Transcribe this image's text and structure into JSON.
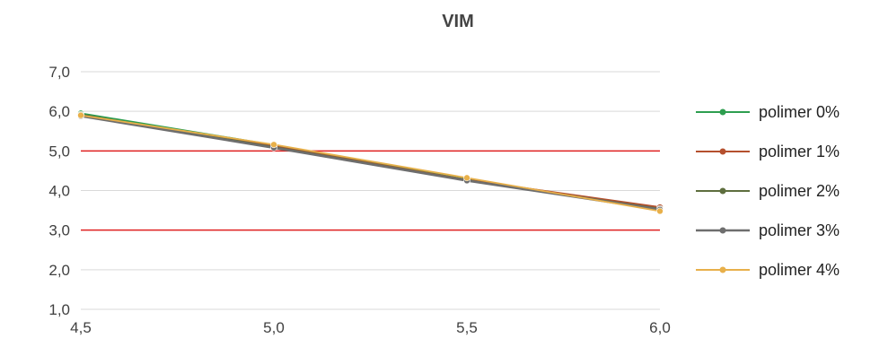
{
  "chart_data": {
    "type": "line",
    "title": "VIM",
    "xlabel": "",
    "ylabel": "",
    "x": [
      4.5,
      5.0,
      5.5,
      6.0
    ],
    "x_tick_labels": [
      "4,5",
      "5,0",
      "5,5",
      "6,0"
    ],
    "xlim": [
      4.5,
      6.0
    ],
    "ylim": [
      1.0,
      7.0
    ],
    "y_ticks": [
      1.0,
      2.0,
      3.0,
      4.0,
      5.0,
      6.0,
      7.0
    ],
    "y_tick_labels": [
      "1,0",
      "2,0",
      "3,0",
      "4,0",
      "5,0",
      "6,0",
      "7,0"
    ],
    "grid": true,
    "legend_position": "right",
    "reference_lines": [
      {
        "y": 5.0,
        "color": "#e02020"
      },
      {
        "y": 3.0,
        "color": "#e02020"
      }
    ],
    "series": [
      {
        "name": "polimer 0%",
        "values": [
          5.95,
          5.15,
          4.28,
          3.55
        ],
        "color": "#2e9e4f"
      },
      {
        "name": "polimer 1%",
        "values": [
          5.9,
          5.12,
          4.27,
          3.58
        ],
        "color": "#b5502e"
      },
      {
        "name": "polimer 2%",
        "values": [
          5.92,
          5.1,
          4.26,
          3.54
        ],
        "color": "#5e6e3e"
      },
      {
        "name": "polimer 3%",
        "values": [
          5.88,
          5.08,
          4.25,
          3.52
        ],
        "color": "#6e6e6e"
      },
      {
        "name": "polimer 4%",
        "values": [
          5.9,
          5.16,
          4.32,
          3.48
        ],
        "color": "#e8b04a"
      }
    ]
  }
}
